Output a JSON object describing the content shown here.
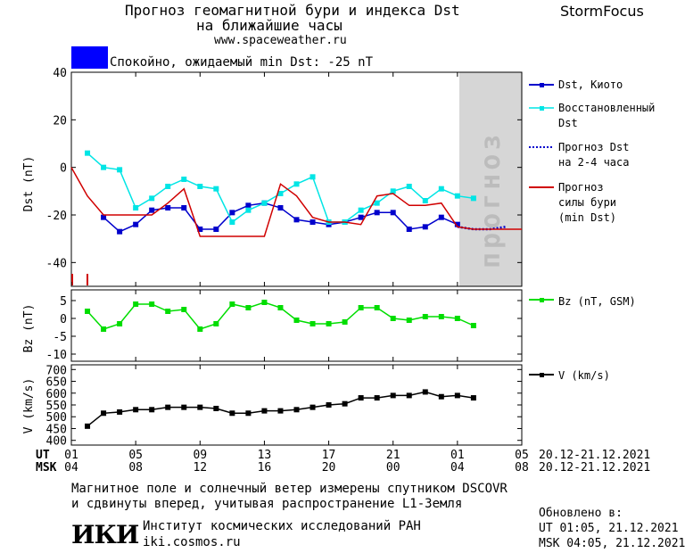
{
  "header": {
    "title_line1": "Прогноз геомагнитной бури и индекса Dst",
    "title_line2": "на ближайшие часы",
    "url": "www.spaceweather.ru",
    "brand": "StormFocus",
    "status_text": "Спокойно, ожидаемый min Dst: -25 nT",
    "status_color": "#0000ff"
  },
  "chart_data": [
    {
      "type": "line",
      "panel": "dst",
      "ylabel": "Dst (nT)",
      "ylim": [
        -50,
        40
      ],
      "yticks": [
        40,
        20,
        0,
        -20,
        -40
      ],
      "xlim": [
        0,
        28
      ],
      "forecast_region": [
        24,
        28
      ],
      "forecast_label": "прогноз",
      "series": [
        {
          "name": "Dst, Киото",
          "color": "#0000cc",
          "marker": "square",
          "style": "solid",
          "x": [
            2,
            3,
            4,
            5,
            6,
            7,
            8,
            9,
            10,
            11,
            12,
            13,
            14,
            15,
            16,
            17,
            18,
            19,
            20,
            21,
            22,
            23,
            24
          ],
          "y": [
            -21,
            -27,
            -24,
            -18,
            -17,
            -17,
            -26,
            -26,
            -19,
            -16,
            -15,
            -17,
            -22,
            -23,
            -24,
            -23,
            -21,
            -19,
            -19,
            -26,
            -25,
            -21,
            -24
          ]
        },
        {
          "name": "Восстановленный Dst",
          "color": "#00e5e5",
          "marker": "square",
          "style": "solid",
          "x": [
            1,
            2,
            3,
            4,
            5,
            6,
            7,
            8,
            9,
            10,
            11,
            12,
            13,
            14,
            15,
            16,
            17,
            18,
            19,
            20,
            21,
            22,
            23,
            24,
            25
          ],
          "y": [
            6,
            0,
            -1,
            -17,
            -13,
            -8,
            -5,
            -8,
            -9,
            -23,
            -18,
            -15,
            -11,
            -7,
            -4,
            -23,
            -23,
            -18,
            -15,
            -10,
            -8,
            -14,
            -9,
            -12,
            -13
          ]
        },
        {
          "name": "Прогноз Dst на 2-4 часа",
          "color": "#0000cc",
          "marker": "none",
          "style": "dotted",
          "x": [
            24,
            25,
            26,
            27
          ],
          "y": [
            -25,
            -26,
            -26,
            -25
          ]
        },
        {
          "name": "Прогноз силы бури (min Dst)",
          "color": "#d00000",
          "marker": "none",
          "style": "solid",
          "x": [
            0,
            1,
            2,
            3,
            4,
            5,
            6,
            7,
            8,
            9,
            10,
            11,
            12,
            13,
            14,
            15,
            16,
            17,
            18,
            19,
            20,
            21,
            22,
            23,
            24,
            25,
            26,
            27,
            28
          ],
          "y": [
            0,
            -12,
            -20,
            -20,
            -20,
            -20,
            -15,
            -9,
            -29,
            -29,
            -29,
            -29,
            -29,
            -7,
            -12,
            -21,
            -23,
            -23,
            -24,
            -12,
            -11,
            -16,
            -16,
            -15,
            -25,
            -26,
            -26,
            -26,
            -26
          ]
        }
      ]
    },
    {
      "type": "line",
      "panel": "bz",
      "ylabel": "Bz (nT)",
      "ylim": [
        -12,
        8
      ],
      "yticks": [
        5,
        0,
        -5,
        -10
      ],
      "xlim": [
        0,
        28
      ],
      "series": [
        {
          "name": "Bz (nT, GSM)",
          "color": "#00dd00",
          "marker": "square",
          "style": "solid",
          "x": [
            1,
            2,
            3,
            4,
            5,
            6,
            7,
            8,
            9,
            10,
            11,
            12,
            13,
            14,
            15,
            16,
            17,
            18,
            19,
            20,
            21,
            22,
            23,
            24,
            25
          ],
          "y": [
            2,
            -3,
            -1.5,
            4,
            4,
            2,
            2.5,
            -3,
            -1.5,
            4,
            3,
            4.5,
            3,
            -0.5,
            -1.5,
            -1.5,
            -1,
            3,
            3,
            0,
            -0.5,
            0.5,
            0.5,
            0,
            -2
          ]
        }
      ]
    },
    {
      "type": "line",
      "panel": "v",
      "ylabel": "V (km/s)",
      "ylim": [
        380,
        720
      ],
      "yticks": [
        700,
        650,
        600,
        550,
        500,
        450,
        400
      ],
      "xlim": [
        0,
        28
      ],
      "series": [
        {
          "name": "V (km/s)",
          "color": "#000000",
          "marker": "square",
          "style": "solid",
          "x": [
            1,
            2,
            3,
            4,
            5,
            6,
            7,
            8,
            9,
            10,
            11,
            12,
            13,
            14,
            15,
            16,
            17,
            18,
            19,
            20,
            21,
            22,
            23,
            24,
            25
          ],
          "y": [
            460,
            515,
            520,
            530,
            530,
            540,
            540,
            540,
            535,
            515,
            515,
            525,
            525,
            530,
            540,
            550,
            555,
            580,
            580,
            590,
            590,
            605,
            585,
            590,
            580
          ]
        }
      ]
    }
  ],
  "x_axis": {
    "ut_label": "UT",
    "msk_label": "MSK",
    "ticks": [
      {
        "x": 0,
        "ut": "01",
        "msk": "04"
      },
      {
        "x": 4,
        "ut": "05",
        "msk": "08"
      },
      {
        "x": 8,
        "ut": "09",
        "msk": "12"
      },
      {
        "x": 12,
        "ut": "13",
        "msk": "16"
      },
      {
        "x": 16,
        "ut": "17",
        "msk": "20"
      },
      {
        "x": 20,
        "ut": "21",
        "msk": "00"
      },
      {
        "x": 24,
        "ut": "01",
        "msk": "04"
      },
      {
        "x": 28,
        "ut": "05",
        "msk": "08"
      }
    ],
    "ut_range": "20.12-21.12.2021",
    "msk_range": "20.12-21.12.2021"
  },
  "legend": {
    "dst_kyoto": "Dst, Киото",
    "restored_1": "Восстановленный",
    "restored_2": "Dst",
    "forecast_1": "Прогноз Dst",
    "forecast_2": "на 2-4 часа",
    "storm_1": "Прогноз",
    "storm_2": "силы бури",
    "storm_3": "(min Dst)",
    "bz": "Bz (nT, GSM)",
    "v": "V (km/s)"
  },
  "footer": {
    "note_1": "Магнитное поле и солнечный ветер измерены спутником DSCOVR",
    "note_2": "и сдвинуты вперед, учитывая распространение L1-Земля",
    "logo": "ИКИ",
    "institute": "Институт космических исследований РАН",
    "site": "iki.cosmos.ru",
    "updated_label": "Обновлено в:",
    "updated_ut": "UT  01:05, 21.12.2021",
    "updated_msk": "MSK 04:05, 21.12.2021"
  }
}
